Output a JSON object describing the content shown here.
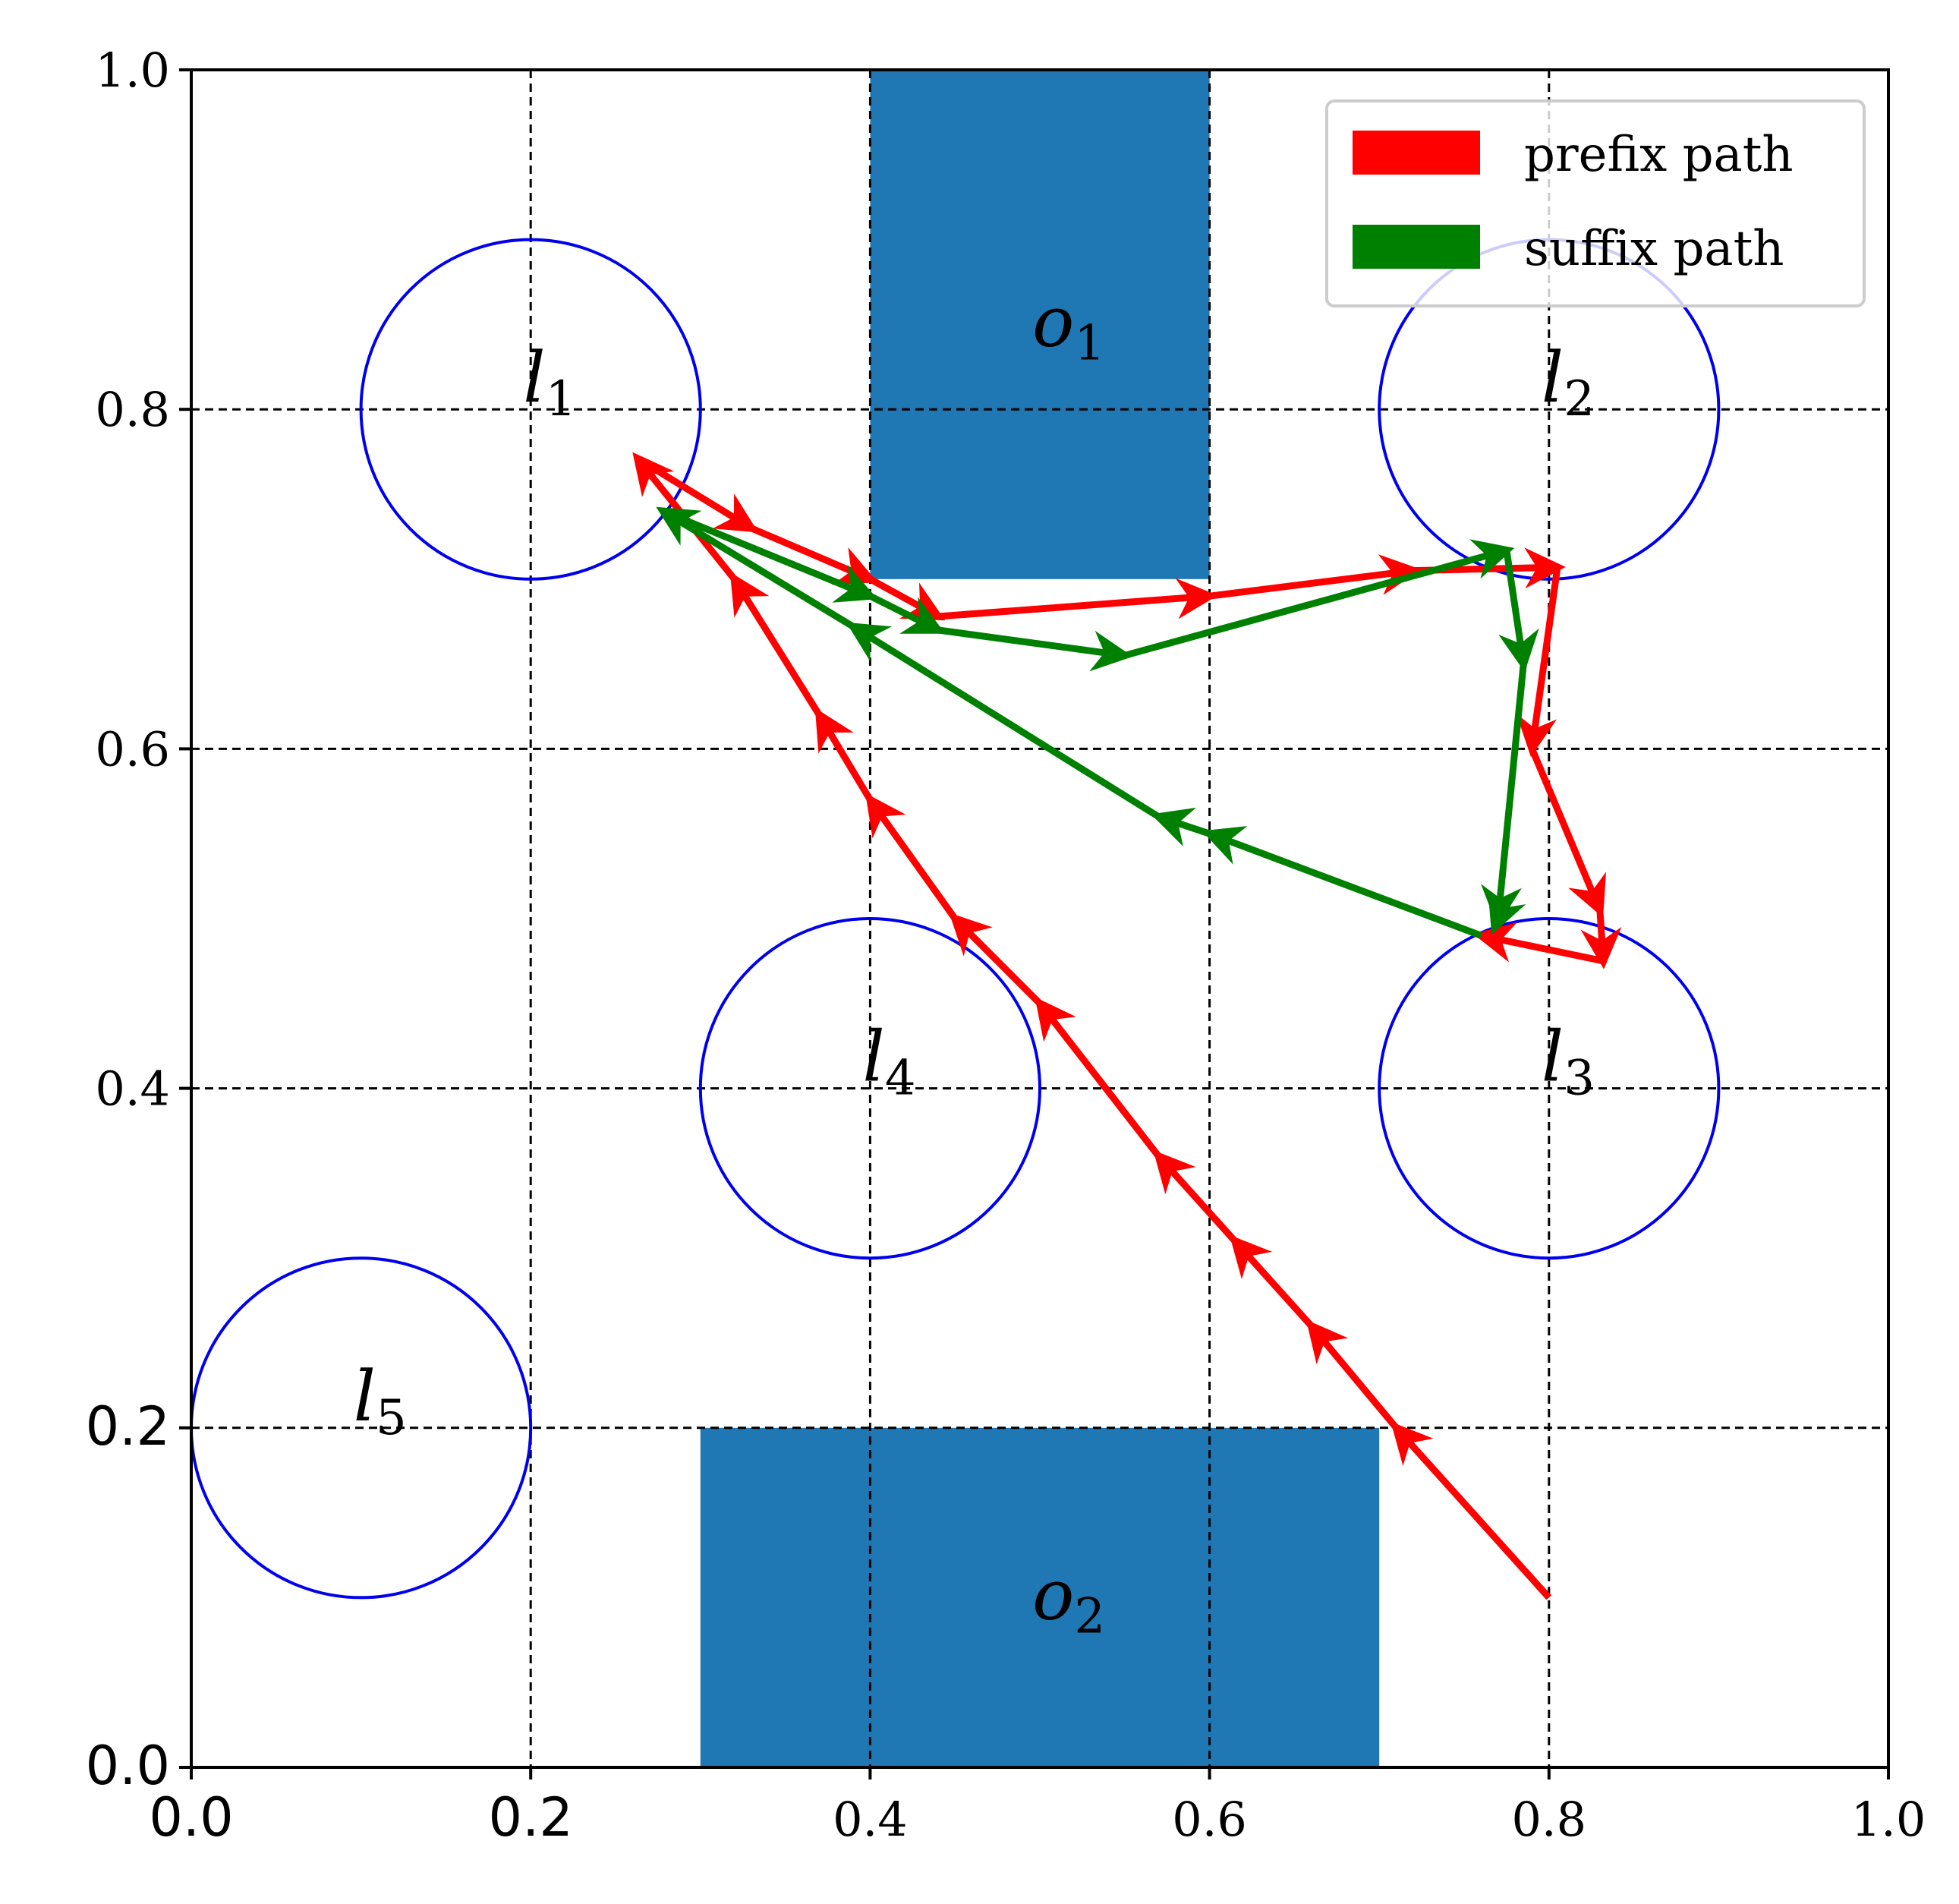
{
  "chart_data": {
    "type": "line",
    "title": "",
    "xlabel": "",
    "ylabel": "",
    "xlim": [
      0.0,
      1.0
    ],
    "ylim": [
      0.0,
      1.0
    ],
    "grid": true,
    "grid_style": "dashed",
    "x_ticks": [
      {
        "value": 0.0,
        "label": "0.0",
        "font": "sans"
      },
      {
        "value": 0.2,
        "label": "0.2",
        "font": "sans"
      },
      {
        "value": 0.4,
        "label": "0.4",
        "font": "serif"
      },
      {
        "value": 0.6,
        "label": "0.6",
        "font": "serif"
      },
      {
        "value": 0.8,
        "label": "0.8",
        "font": "serif"
      },
      {
        "value": 1.0,
        "label": "1.0",
        "font": "serif"
      }
    ],
    "y_ticks": [
      {
        "value": 0.0,
        "label": "0.0",
        "font": "sans"
      },
      {
        "value": 0.2,
        "label": "0.2",
        "font": "sans"
      },
      {
        "value": 0.4,
        "label": "0.4",
        "font": "serif"
      },
      {
        "value": 0.6,
        "label": "0.6",
        "font": "serif"
      },
      {
        "value": 0.8,
        "label": "0.8",
        "font": "serif"
      },
      {
        "value": 1.0,
        "label": "1.0",
        "font": "serif"
      }
    ],
    "obstacles": [
      {
        "id": "o1",
        "name": "o",
        "sub": "1",
        "x": [
          0.4,
          0.6
        ],
        "y": [
          0.7,
          1.0
        ],
        "label_at": [
          0.5,
          0.85
        ],
        "color": "#1f77b4"
      },
      {
        "id": "o2",
        "name": "o",
        "sub": "2",
        "x": [
          0.3,
          0.7
        ],
        "y": [
          0.0,
          0.2
        ],
        "label_at": [
          0.5,
          0.1
        ],
        "color": "#1f77b4"
      }
    ],
    "regions": [
      {
        "id": "l1",
        "name": "l",
        "sub": "1",
        "center": [
          0.2,
          0.8
        ],
        "radius": 0.1,
        "label_at": [
          0.2,
          0.8
        ]
      },
      {
        "id": "l2",
        "name": "l",
        "sub": "2",
        "center": [
          0.8,
          0.8
        ],
        "radius": 0.1,
        "label_at": [
          0.8,
          0.8
        ]
      },
      {
        "id": "l3",
        "name": "l",
        "sub": "3",
        "center": [
          0.8,
          0.4
        ],
        "radius": 0.1,
        "label_at": [
          0.8,
          0.4
        ]
      },
      {
        "id": "l4",
        "name": "l",
        "sub": "4",
        "center": [
          0.4,
          0.4
        ],
        "radius": 0.1,
        "label_at": [
          0.4,
          0.4
        ]
      },
      {
        "id": "l5",
        "name": "l",
        "sub": "5",
        "center": [
          0.1,
          0.2
        ],
        "radius": 0.1,
        "label_at": [
          0.1,
          0.2
        ]
      }
    ],
    "region_color": "#0000ee",
    "series": [
      {
        "name": "prefix path",
        "color": "#ff0000",
        "points": [
          [
            0.8,
            0.1
          ],
          [
            0.71,
            0.2
          ],
          [
            0.66,
            0.26
          ],
          [
            0.615,
            0.31
          ],
          [
            0.57,
            0.36
          ],
          [
            0.5,
            0.45
          ],
          [
            0.45,
            0.5
          ],
          [
            0.4,
            0.57
          ],
          [
            0.37,
            0.62
          ],
          [
            0.32,
            0.7
          ],
          [
            0.263,
            0.771
          ],
          [
            0.33,
            0.73
          ],
          [
            0.4,
            0.7
          ],
          [
            0.44,
            0.678
          ],
          [
            0.6,
            0.69
          ],
          [
            0.72,
            0.705
          ],
          [
            0.805,
            0.707
          ],
          [
            0.79,
            0.6
          ],
          [
            0.83,
            0.505
          ],
          [
            0.832,
            0.475
          ],
          [
            0.76,
            0.49
          ]
        ]
      },
      {
        "name": "suffix path",
        "color": "#008000",
        "points": [
          [
            0.76,
            0.49
          ],
          [
            0.6,
            0.55
          ],
          [
            0.57,
            0.56
          ],
          [
            0.39,
            0.672
          ],
          [
            0.278,
            0.74
          ],
          [
            0.4,
            0.69
          ],
          [
            0.44,
            0.67
          ],
          [
            0.55,
            0.655
          ],
          [
            0.775,
            0.717
          ],
          [
            0.785,
            0.65
          ],
          [
            0.77,
            0.5
          ],
          [
            0.768,
            0.495
          ]
        ]
      }
    ],
    "legend": {
      "placement": "top-right",
      "entries": [
        {
          "label": "prefix path",
          "color": "#ff0000"
        },
        {
          "label": "suffix path",
          "color": "#008000"
        }
      ]
    }
  }
}
